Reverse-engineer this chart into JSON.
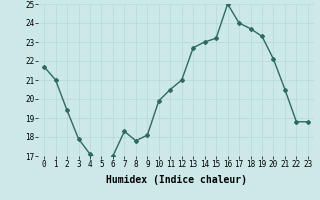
{
  "x": [
    0,
    1,
    2,
    3,
    4,
    5,
    6,
    7,
    8,
    9,
    10,
    11,
    12,
    13,
    14,
    15,
    16,
    17,
    18,
    19,
    20,
    21,
    22,
    23
  ],
  "y": [
    21.7,
    21.0,
    19.4,
    17.9,
    17.1,
    16.7,
    17.0,
    18.3,
    17.8,
    18.1,
    19.9,
    20.5,
    21.0,
    22.7,
    23.0,
    23.2,
    25.0,
    24.0,
    23.7,
    23.3,
    22.1,
    20.5,
    18.8,
    18.8
  ],
  "line_color": "#2e6b5e",
  "marker": "D",
  "marker_size": 2.0,
  "linewidth": 1.0,
  "xlabel": "Humidex (Indice chaleur)",
  "ylim": [
    17,
    25
  ],
  "xlim": [
    -0.5,
    23.5
  ],
  "yticks": [
    17,
    18,
    19,
    20,
    21,
    22,
    23,
    24,
    25
  ],
  "xticks": [
    0,
    1,
    2,
    3,
    4,
    5,
    6,
    7,
    8,
    9,
    10,
    11,
    12,
    13,
    14,
    15,
    16,
    17,
    18,
    19,
    20,
    21,
    22,
    23
  ],
  "bg_color": "#cce8e8",
  "grid_color": "#b8d8d8",
  "tick_label_size": 5.5,
  "xlabel_size": 7.0,
  "xlabel_weight": "bold"
}
